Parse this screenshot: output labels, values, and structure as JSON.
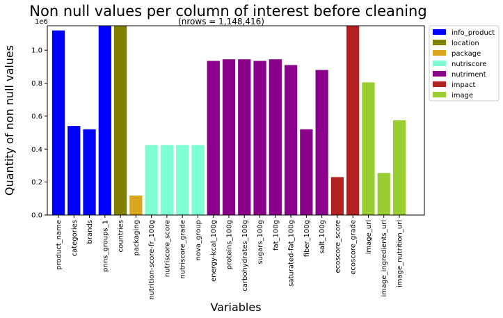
{
  "chart_data": {
    "type": "bar",
    "title": "Non null values per column of interest before cleaning",
    "subtitle": "(nrows = 1,148,416)",
    "xlabel": "Variables",
    "ylabel": "Quantity of non null values",
    "y_offset_label": "1e6",
    "ylim": [
      0,
      1148416
    ],
    "yticks": [
      0.0,
      0.2,
      0.4,
      0.6,
      0.8,
      1.0
    ],
    "ytick_labels": [
      "0.0",
      "0.2",
      "0.4",
      "0.6",
      "0.8",
      "1.0"
    ],
    "y_scale": 1000000,
    "legend_position": "outside-top-right",
    "legend": [
      {
        "name": "info_product",
        "color": "#0000ff"
      },
      {
        "name": "location",
        "color": "#808000"
      },
      {
        "name": "package",
        "color": "#daa520"
      },
      {
        "name": "nutriscore",
        "color": "#7fffd4"
      },
      {
        "name": "nutriment",
        "color": "#8b008b"
      },
      {
        "name": "impact",
        "color": "#b22222"
      },
      {
        "name": "image",
        "color": "#9acd32"
      }
    ],
    "categories": [
      "product_name",
      "categories",
      "brands",
      "pnns_groups_1",
      "countries",
      "packaging",
      "nutrition-score-fr_100g",
      "nutriscore_score",
      "nutriscore_grade",
      "nova_group",
      "energy-kcal_100g",
      "proteins_100g",
      "carbohydrates_100g",
      "sugars_100g",
      "fat_100g",
      "saturated-fat_100g",
      "fiber_100g",
      "salt_100g",
      "ecoscore_score",
      "ecoscore_grade",
      "image_url",
      "image_ingredients_url",
      "image_nutrition_url"
    ],
    "groups": [
      "info_product",
      "info_product",
      "info_product",
      "info_product",
      "location",
      "package",
      "nutriscore",
      "nutriscore",
      "nutriscore",
      "nutriscore",
      "nutriment",
      "nutriment",
      "nutriment",
      "nutriment",
      "nutriment",
      "nutriment",
      "nutriment",
      "nutriment",
      "impact",
      "impact",
      "image",
      "image",
      "image"
    ],
    "values": [
      1120000,
      540000,
      520000,
      1148416,
      1148416,
      118000,
      425000,
      425000,
      425000,
      425000,
      935000,
      945000,
      945000,
      935000,
      945000,
      910000,
      520000,
      880000,
      230000,
      1148416,
      805000,
      255000,
      575000
    ]
  }
}
